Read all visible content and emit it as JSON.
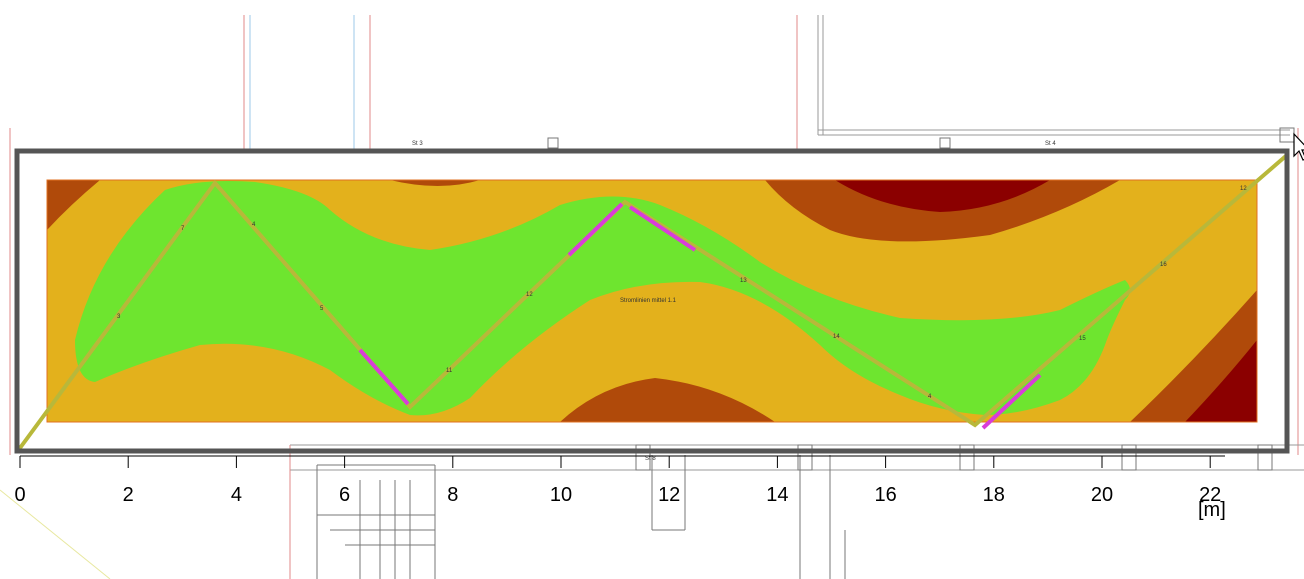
{
  "scale": {
    "ticks": [
      "0",
      "2",
      "4",
      "6",
      "8",
      "10",
      "12",
      "14",
      "16",
      "18",
      "20",
      "22"
    ],
    "unit": "[m]"
  },
  "plan_labels": {
    "top_left": "St 3",
    "top_right": "St 4",
    "bottom": "St 8",
    "center": "Stromlinien mittel 1.1"
  },
  "colors": {
    "zone_green": "#6ee52f",
    "zone_orange": "#e3b11c",
    "zone_brown": "#b04a0a",
    "zone_red": "#8b0000",
    "path": "#b8b83a",
    "path_highlight": "#d93dd9",
    "frame": "#555555",
    "plan_lines": "#e07070"
  }
}
